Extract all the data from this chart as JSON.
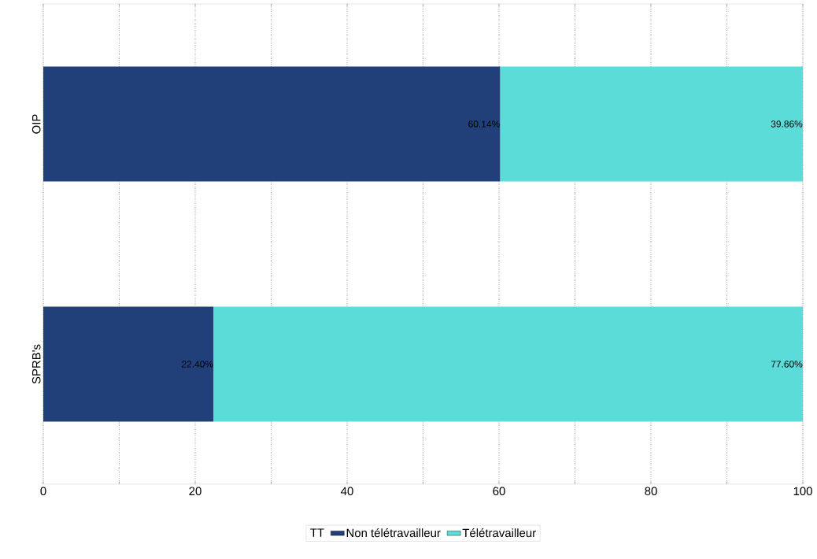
{
  "chart_data": {
    "type": "bar",
    "orientation": "horizontal",
    "stacked": true,
    "categories": [
      "OIP",
      "SPRB's"
    ],
    "series": [
      {
        "name": "Non télétravailleur",
        "color": "#21407a",
        "values": [
          60.14,
          22.4
        ],
        "value_labels": [
          "60.14%",
          "22.40%"
        ]
      },
      {
        "name": "Télétravailleur",
        "color": "#5cdcd8",
        "values": [
          39.86,
          77.6
        ],
        "value_labels": [
          "39.86%",
          "77.60%"
        ]
      }
    ],
    "legend_title": "TT",
    "legend": "bottom",
    "grid": "x",
    "xlim": [
      0,
      100
    ],
    "xticks": [
      0,
      {
        "value": 10,
        "label": null
      },
      20,
      {
        "value": 30,
        "label": null
      },
      40,
      {
        "value": 50,
        "label": null
      },
      60,
      {
        "value": 70,
        "label": null
      },
      80,
      {
        "value": 90,
        "label": null
      },
      100
    ]
  }
}
